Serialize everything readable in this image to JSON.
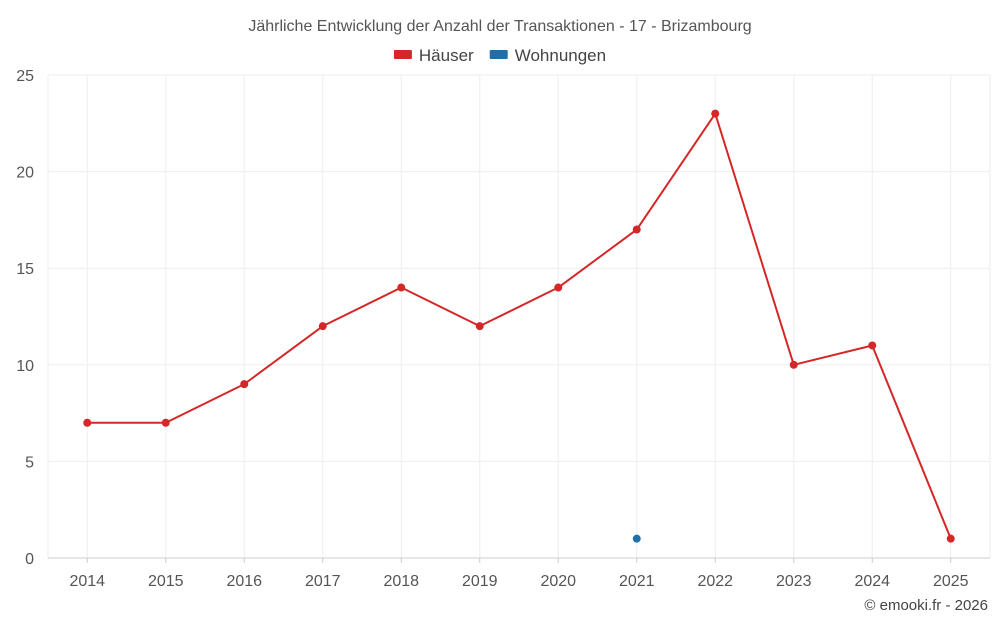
{
  "chart_data": {
    "type": "line",
    "title": "Jährliche Entwicklung der Anzahl der Transaktionen - 17 - Brizambourg",
    "xlabel": "",
    "ylabel": "",
    "categories": [
      "2014",
      "2015",
      "2016",
      "2017",
      "2018",
      "2019",
      "2020",
      "2021",
      "2022",
      "2023",
      "2024",
      "2025"
    ],
    "ylim": [
      0,
      25
    ],
    "yticks": [
      0,
      5,
      10,
      15,
      20,
      25
    ],
    "grid": true,
    "legend_position": "top-center",
    "series": [
      {
        "name": "Häuser",
        "color": "#d62728",
        "values": [
          7,
          7,
          9,
          12,
          14,
          12,
          14,
          17,
          23,
          10,
          11,
          1
        ]
      },
      {
        "name": "Wohnungen",
        "color": "#1f6fa8",
        "values": [
          null,
          null,
          null,
          null,
          null,
          null,
          null,
          1,
          null,
          null,
          null,
          null
        ]
      }
    ]
  },
  "credit": "© emooki.fr - 2026"
}
